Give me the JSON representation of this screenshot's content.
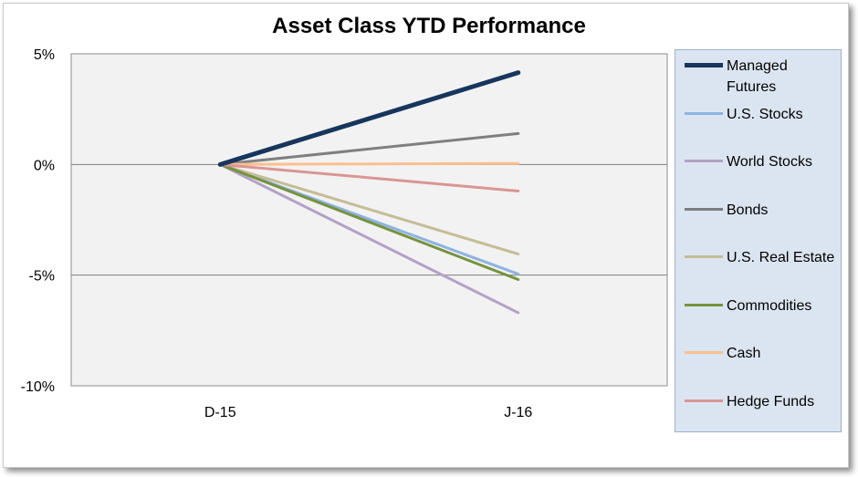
{
  "chart_data": {
    "type": "line",
    "title": "Asset Class YTD Performance",
    "categories": [
      "D-15",
      "J-16"
    ],
    "y_ticks": [
      "5%",
      "0%",
      "-5%",
      "-10%"
    ],
    "ylim": [
      -10,
      5
    ],
    "grid": true,
    "legend_position": "right",
    "series": [
      {
        "name": "Managed Futures",
        "values": [
          0,
          4.15
        ],
        "color": "#17365d",
        "width": 5
      },
      {
        "name": "U.S. Stocks",
        "values": [
          0,
          -4.95
        ],
        "color": "#8db3e2",
        "width": 3
      },
      {
        "name": "World Stocks",
        "values": [
          0,
          -6.7
        ],
        "color": "#b3a2c7",
        "width": 3
      },
      {
        "name": "Bonds",
        "values": [
          0,
          1.4
        ],
        "color": "#7f7f7f",
        "width": 3
      },
      {
        "name": "U.S. Real Estate",
        "values": [
          0,
          -4.05
        ],
        "color": "#c4bd97",
        "width": 3
      },
      {
        "name": "Commodities",
        "values": [
          0,
          -5.2
        ],
        "color": "#76923c",
        "width": 3
      },
      {
        "name": "Cash",
        "values": [
          0,
          0.05
        ],
        "color": "#fac08f",
        "width": 3
      },
      {
        "name": "Hedge Funds",
        "values": [
          0,
          -1.2
        ],
        "color": "#d99694",
        "width": 3
      }
    ]
  }
}
